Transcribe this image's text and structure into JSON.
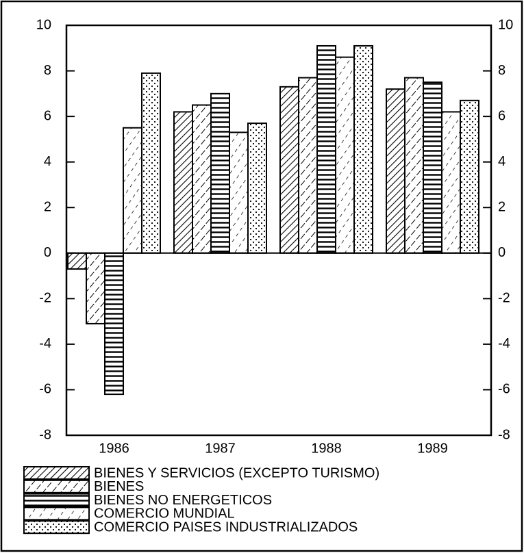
{
  "chart_data": {
    "type": "bar",
    "categories": [
      "1986",
      "1987",
      "1988",
      "1989"
    ],
    "series": [
      {
        "name": "BIENES Y SERVICIOS (EXCEPTO TURISMO)",
        "color": "#000000",
        "pattern": "dense-diagonal",
        "values": [
          -0.7,
          6.2,
          7.3,
          7.2
        ]
      },
      {
        "name": "BIENES",
        "color": "#000000",
        "pattern": "dashed-diagonal",
        "values": [
          -3.1,
          6.5,
          7.7,
          7.7
        ]
      },
      {
        "name": "BIENES NO ENERGETICOS",
        "color": "#000000",
        "pattern": "horizontal",
        "values": [
          -6.2,
          7.0,
          9.1,
          7.5
        ]
      },
      {
        "name": "COMERCIO MUNDIAL",
        "color": "#000000",
        "pattern": "sparse-diagonal",
        "values": [
          5.5,
          5.3,
          8.6,
          6.2
        ]
      },
      {
        "name": "COMERCIO PAISES INDUSTRIALIZADOS",
        "color": "#000000",
        "pattern": "dots",
        "values": [
          7.9,
          5.7,
          9.1,
          6.7
        ]
      }
    ],
    "ylim": [
      -8,
      10
    ],
    "yticks": [
      -8,
      -6,
      -4,
      -2,
      0,
      2,
      4,
      6,
      8,
      10
    ],
    "y2lim": [
      -8,
      10
    ],
    "y2ticks": [
      -8,
      -6,
      -4,
      -2,
      0,
      2,
      4,
      6,
      8,
      10
    ],
    "grid": false,
    "legend": "bottom-left"
  }
}
